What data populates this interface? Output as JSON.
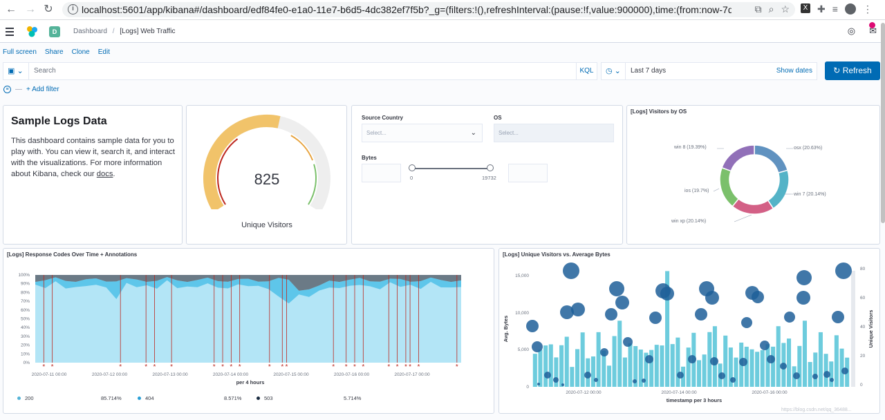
{
  "browser": {
    "url": "localhost:5601/app/kibana#/dashboard/edf84fe0-e1a0-11e7-b6d5-4dc382ef7f5b?_g=(filters:!(),refreshInterval:(pause:!f,value:900000),time:(from:now-7d,to:now))&_..."
  },
  "header": {
    "space_initial": "D",
    "breadcrumb_root": "Dashboard",
    "breadcrumb_current": "[Logs] Web Traffic"
  },
  "topnav": {
    "full_screen": "Full screen",
    "share": "Share",
    "clone": "Clone",
    "edit": "Edit"
  },
  "query": {
    "placeholder": "Search",
    "language": "KQL"
  },
  "time": {
    "range": "Last 7 days",
    "show_dates": "Show dates",
    "refresh": "Refresh"
  },
  "filters": {
    "add_filter": "+ Add filter"
  },
  "markdown": {
    "title": "Sample Logs Data",
    "body": "This dashboard contains sample data for you to play with. You can view it, search it, and interact with the visualizations. For more information about Kibana, check our ",
    "link": "docs",
    "end": "."
  },
  "gauge": {
    "value": "825",
    "label": "Unique Visitors",
    "fill_fraction": 0.55
  },
  "controls": {
    "source_country": "Source Country",
    "os": "OS",
    "select_placeholder": "Select...",
    "bytes": "Bytes",
    "bytes_min": "0",
    "bytes_max": "19732"
  },
  "visitors_by_os": {
    "title": "[Logs] Visitors by OS",
    "chart_data": {
      "type": "pie",
      "slices": [
        {
          "label": "osx (20.63%)",
          "value": 20.63,
          "color": "#6092c0"
        },
        {
          "label": "win 7 (20.14%)",
          "value": 20.14,
          "color": "#54b3c7"
        },
        {
          "label": "win xp (20.14%)",
          "value": 20.14,
          "color": "#d36086"
        },
        {
          "label": "ios (19.7%)",
          "value": 19.7,
          "color": "#7bc06b"
        },
        {
          "label": "win 8 (19.39%)",
          "value": 19.39,
          "color": "#9170b8"
        }
      ]
    }
  },
  "response_codes": {
    "title": "[Logs] Response Codes Over Time + Annotations",
    "xlabel": "per 4 hours",
    "yticks": [
      "100%",
      "90%",
      "80%",
      "70%",
      "60%",
      "50%",
      "40%",
      "30%",
      "20%",
      "10%",
      "0%"
    ],
    "xticks": [
      "2020-07-11 00:00",
      "2020-07-12 00:00",
      "2020-07-13 00:00",
      "2020-07-14 00:00",
      "2020-07-15 00:00",
      "2020-07-16 00:00",
      "2020-07-17 00:00"
    ],
    "legend": [
      {
        "label": "200",
        "value": "85.714%",
        "color": "#54b3d6"
      },
      {
        "label": "404",
        "value": "8.571%",
        "color": "#2a9fd6"
      },
      {
        "label": "503",
        "value": "5.714%",
        "color": "#1a2b40"
      }
    ],
    "annotation_marker": "*"
  },
  "unique_visitors": {
    "title": "[Logs] Unique Visitors vs. Average Bytes",
    "ylabel_left": "Avg. Bytes",
    "ylabel_right": "Unique Visitors",
    "xlabel": "timestamp per 3 hours",
    "yticks_left": [
      "15,000",
      "10,000",
      "5,000",
      "0"
    ],
    "yticks_right": [
      "80",
      "60",
      "40",
      "20",
      "0"
    ],
    "xticks": [
      "2020-07-12 00:00",
      "2020-07-14 00:00",
      "2020-07-16 00:00"
    ]
  },
  "watermark": "https://blog.csdn.net/qq_36488..."
}
